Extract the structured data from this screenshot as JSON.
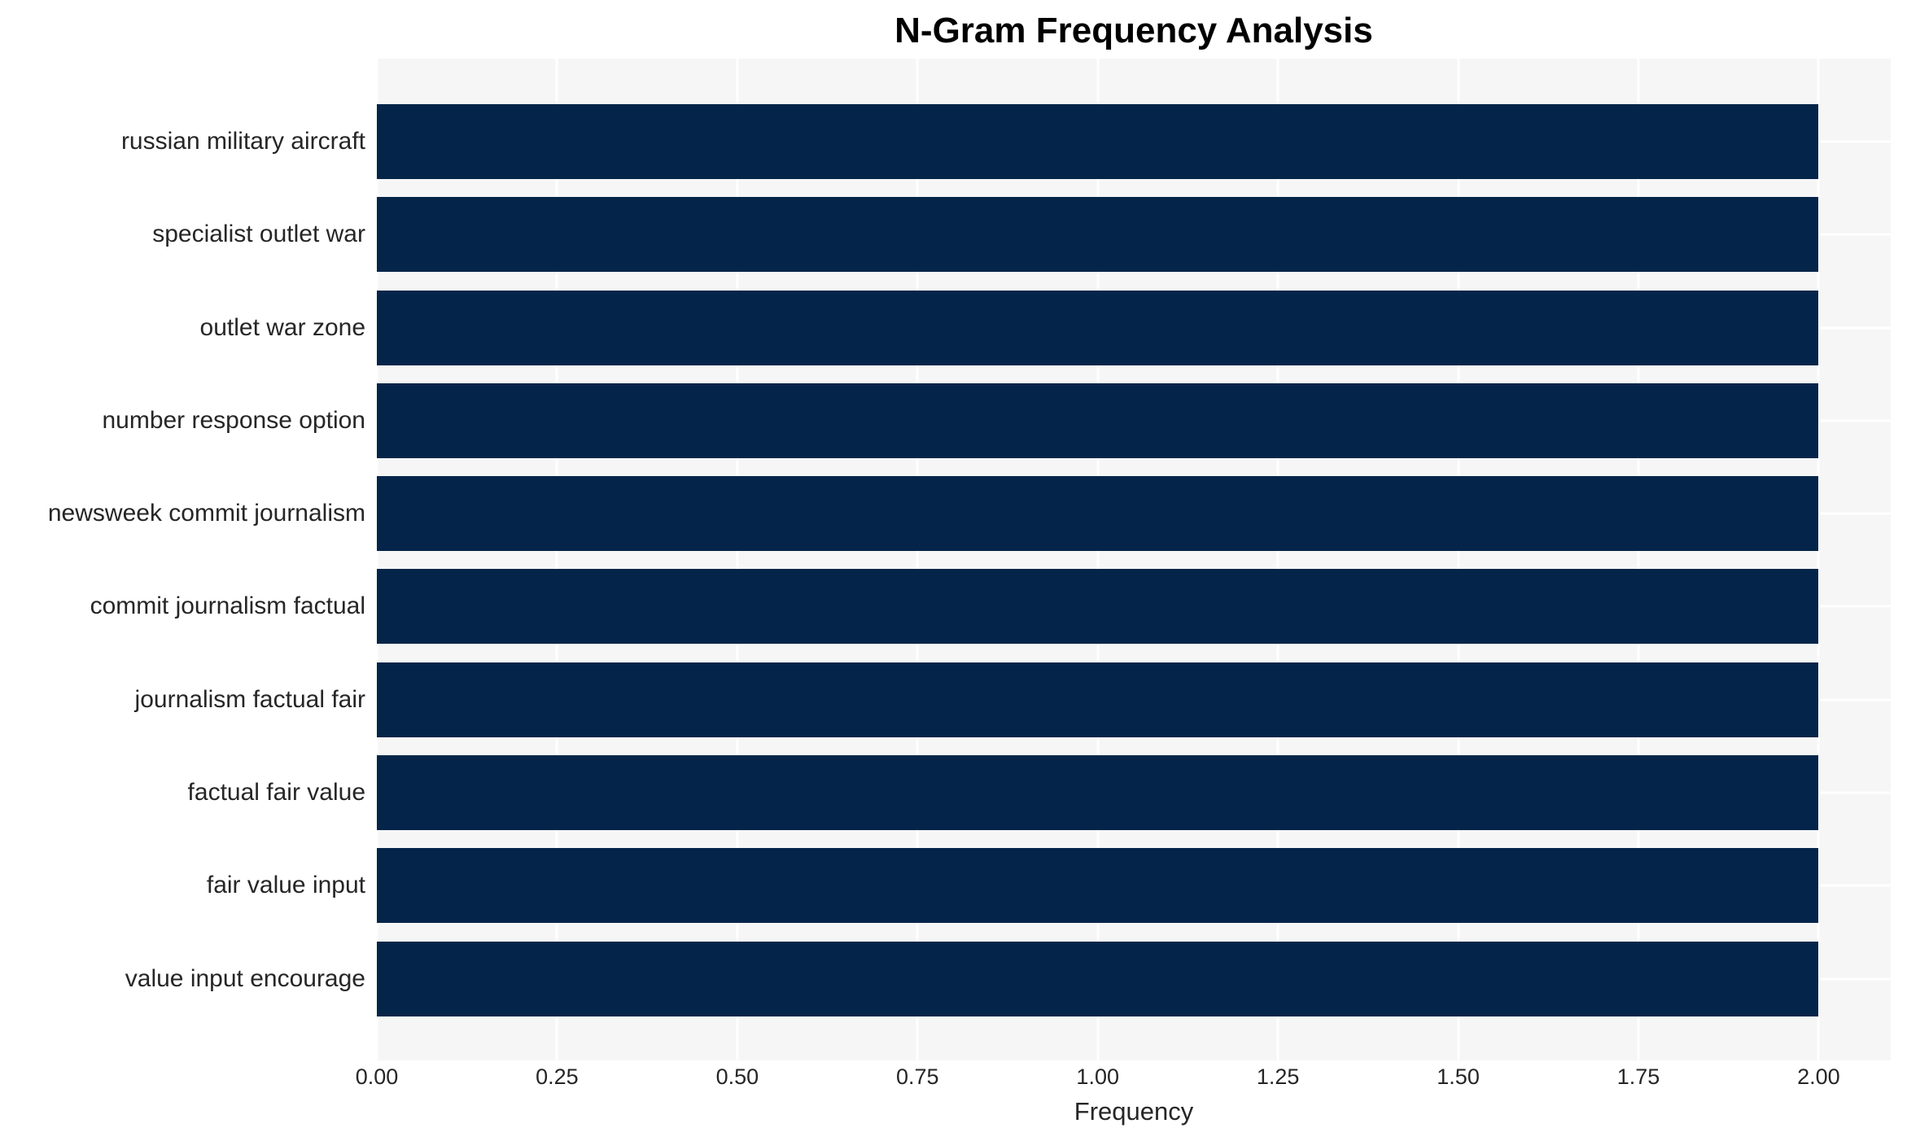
{
  "chart_data": {
    "type": "bar",
    "orientation": "horizontal",
    "title": "N-Gram Frequency Analysis",
    "xlabel": "Frequency",
    "ylabel": "",
    "categories": [
      "russian military aircraft",
      "specialist outlet war",
      "outlet war zone",
      "number response option",
      "newsweek commit journalism",
      "commit journalism factual",
      "journalism factual fair",
      "factual fair value",
      "fair value input",
      "value input encourage"
    ],
    "values": [
      2,
      2,
      2,
      2,
      2,
      2,
      2,
      2,
      2,
      2
    ],
    "xtick_labels": [
      "0.00",
      "0.25",
      "0.50",
      "0.75",
      "1.00",
      "1.25",
      "1.50",
      "1.75",
      "2.00"
    ],
    "xlim": [
      0,
      2.1
    ],
    "grid": true,
    "legend": false,
    "colors": {
      "bar": "#042549",
      "plot_background": "#f6f6f7",
      "figure_background": "#ffffff",
      "gridline": "#ffffff",
      "tick_text": "#262626",
      "title_text": "#000000"
    }
  }
}
